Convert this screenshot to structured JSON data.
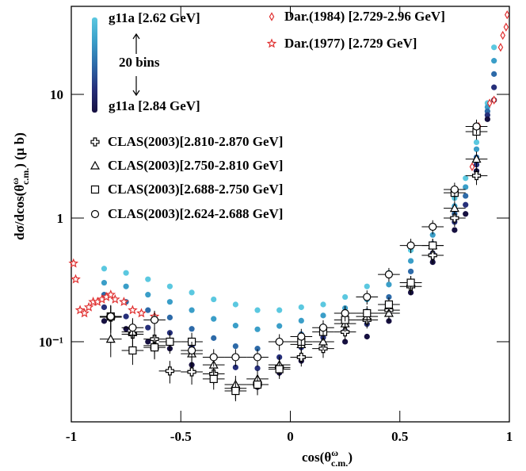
{
  "chart_data": {
    "type": "scatter",
    "xlabel": [
      "cos(θ",
      "ω",
      "c.m.",
      ")"
    ],
    "ylabel": [
      "dσ/dcos(θ",
      "ω",
      "c.m.",
      ") (μ b)"
    ],
    "xlim": [
      -1,
      1
    ],
    "ylim": [
      0.0225,
      51.5
    ],
    "log_y": true,
    "xticks": [
      -1,
      -0.5,
      0,
      0.5,
      1
    ],
    "yticks": [
      {
        "value": 0.1,
        "label": "10⁻¹"
      },
      1,
      10
    ],
    "g11a": {
      "legend_top": "g11a [2.62 GeV]",
      "legend_bottom": "g11a [2.84 GeV]",
      "bins_label": "20 bins",
      "x": [
        -0.85,
        -0.75,
        -0.65,
        -0.55,
        -0.45,
        -0.35,
        -0.25,
        -0.15,
        -0.05,
        0.05,
        0.15,
        0.25,
        0.35,
        0.45,
        0.55,
        0.65,
        0.75,
        0.8,
        0.85,
        0.9,
        0.93
      ],
      "bins": [
        {
          "color": "#5bc8e0",
          "values": [
            0.39,
            0.36,
            0.32,
            0.28,
            0.25,
            0.22,
            0.2,
            0.18,
            0.18,
            0.19,
            0.2,
            0.23,
            0.28,
            0.36,
            0.55,
            0.86,
            1.45,
            2.1,
            4.1,
            8.5,
            24
          ]
        },
        {
          "color": "#3a9ec8",
          "values": [
            0.3,
            0.28,
            0.24,
            0.21,
            0.18,
            0.153,
            0.135,
            0.126,
            0.134,
            0.148,
            0.163,
            0.187,
            0.22,
            0.29,
            0.45,
            0.73,
            1.25,
            1.78,
            3.6,
            7.9,
            18.7
          ]
        },
        {
          "color": "#2d6aa8",
          "values": [
            0.24,
            0.21,
            0.18,
            0.157,
            0.127,
            0.107,
            0.092,
            0.088,
            0.1,
            0.115,
            0.133,
            0.152,
            0.176,
            0.23,
            0.37,
            0.62,
            1.08,
            1.51,
            3.1,
            7.3,
            14.6
          ]
        },
        {
          "color": "#262f7a",
          "values": [
            0.19,
            0.16,
            0.13,
            0.118,
            0.091,
            0.074,
            0.062,
            0.061,
            0.075,
            0.09,
            0.108,
            0.123,
            0.139,
            0.184,
            0.3,
            0.52,
            0.93,
            1.28,
            2.7,
            6.8,
            11.4
          ]
        },
        {
          "color": "#161040",
          "values": [
            0.147,
            0.127,
            0.1,
            0.088,
            0.065,
            0.052,
            0.042,
            0.043,
            0.056,
            0.07,
            0.088,
            0.1,
            0.11,
            0.147,
            0.25,
            0.44,
            0.8,
            1.08,
            2.4,
            6.3,
            9
          ]
        }
      ]
    },
    "xerr": 0.05,
    "series": [
      {
        "name": "Dar.(1984) [2.729-2.96 GeV]",
        "marker": "diamond",
        "color": "#e03030",
        "x": [
          0.83,
          0.86,
          0.91,
          0.93,
          0.96,
          0.97,
          0.985,
          0.99
        ],
        "values": [
          2.6,
          5.5,
          8.5,
          9,
          24,
          30,
          35,
          44
        ]
      },
      {
        "name": "Dar.(1977) [2.729 GeV]",
        "marker": "star",
        "color": "#e03030",
        "x": [
          -0.99,
          -0.98,
          -0.96,
          -0.94,
          -0.92,
          -0.9,
          -0.88,
          -0.86,
          -0.84,
          -0.82,
          -0.8,
          -0.76,
          -0.72,
          -0.68,
          -0.62
        ],
        "values": [
          0.43,
          0.32,
          0.18,
          0.17,
          0.19,
          0.21,
          0.21,
          0.22,
          0.23,
          0.24,
          0.22,
          0.21,
          0.18,
          0.17,
          0.16
        ]
      },
      {
        "name": "CLAS(2003)[2.810-2.870 GeV]",
        "marker": "plus",
        "color": "#000000",
        "errors": true,
        "x": [
          -0.82,
          -0.72,
          -0.62,
          -0.55,
          -0.45,
          -0.35,
          -0.25,
          -0.15,
          -0.05,
          0.05,
          0.15,
          0.25,
          0.35,
          0.45,
          0.55,
          0.65,
          0.75,
          0.85
        ],
        "values": [
          0.158,
          0.115,
          0.105,
          0.058,
          0.057,
          0.055,
          0.042,
          0.045,
          0.062,
          0.075,
          0.088,
          0.12,
          0.15,
          0.18,
          0.28,
          0.5,
          1,
          2.2
        ],
        "yerr": [
          0.04,
          0.03,
          0.025,
          0.012,
          0.012,
          0.01,
          0.008,
          0.008,
          0.01,
          0.012,
          0.014,
          0.018,
          0.022,
          0.025,
          0.04,
          0.07,
          0.15,
          0.35
        ]
      },
      {
        "name": "CLAS(2003)[2.750-2.810 GeV]",
        "marker": "triangle",
        "color": "#000000",
        "errors": true,
        "x": [
          -0.82,
          -0.72,
          -0.62,
          -0.45,
          -0.35,
          -0.25,
          -0.15,
          -0.05,
          0.05,
          0.15,
          0.25,
          0.35,
          0.45,
          0.55,
          0.65,
          0.75,
          0.85
        ],
        "values": [
          0.105,
          0.12,
          0.093,
          0.08,
          0.065,
          0.045,
          0.05,
          0.065,
          0.095,
          0.1,
          0.14,
          0.16,
          0.17,
          0.3,
          0.6,
          1.2,
          3
        ],
        "yerr": [
          0.03,
          0.03,
          0.02,
          0.015,
          0.012,
          0.008,
          0.009,
          0.011,
          0.015,
          0.015,
          0.02,
          0.022,
          0.024,
          0.04,
          0.08,
          0.17,
          0.45
        ]
      },
      {
        "name": "CLAS(2003)[2.688-2.750 GeV]",
        "marker": "square",
        "color": "#000000",
        "errors": true,
        "x": [
          -0.82,
          -0.72,
          -0.62,
          -0.55,
          -0.45,
          -0.35,
          -0.25,
          -0.15,
          -0.05,
          0.05,
          0.15,
          0.25,
          0.35,
          0.45,
          0.55,
          0.65,
          0.75,
          0.85
        ],
        "values": [
          0.16,
          0.085,
          0.09,
          0.1,
          0.1,
          0.05,
          0.04,
          0.045,
          0.06,
          0.1,
          0.12,
          0.15,
          0.17,
          0.2,
          0.3,
          0.6,
          1.6,
          5
        ],
        "yerr": [
          0.035,
          0.02,
          0.018,
          0.02,
          0.018,
          0.009,
          0.007,
          0.008,
          0.01,
          0.016,
          0.018,
          0.022,
          0.024,
          0.028,
          0.04,
          0.08,
          0.22,
          0.7
        ]
      },
      {
        "name": "CLAS(2003)[2.624-2.688 GeV]",
        "marker": "circle",
        "color": "#000000",
        "errors": true,
        "x": [
          -0.82,
          -0.72,
          -0.62,
          -0.45,
          -0.35,
          -0.25,
          -0.15,
          -0.05,
          0.05,
          0.15,
          0.25,
          0.35,
          0.45,
          0.55,
          0.65,
          0.75,
          0.85
        ],
        "values": [
          0.16,
          0.13,
          0.15,
          0.085,
          0.075,
          0.075,
          0.075,
          0.1,
          0.11,
          0.13,
          0.17,
          0.23,
          0.35,
          0.6,
          0.85,
          1.7,
          5.5
        ],
        "yerr": [
          0.035,
          0.025,
          0.028,
          0.015,
          0.012,
          0.012,
          0.012,
          0.015,
          0.017,
          0.019,
          0.024,
          0.03,
          0.045,
          0.08,
          0.11,
          0.23,
          0.75
        ]
      }
    ]
  }
}
